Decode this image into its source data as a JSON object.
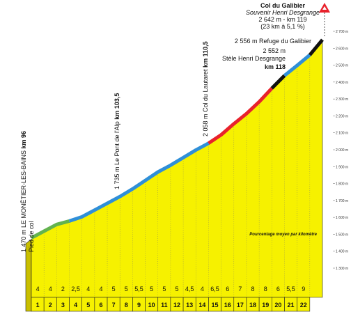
{
  "chart_data": {
    "type": "profile",
    "x": [
      0,
      1,
      2,
      3,
      4,
      5,
      6,
      7,
      8,
      9,
      10,
      11,
      12,
      13,
      14,
      15,
      16,
      17,
      18,
      19,
      20,
      21,
      22,
      23
    ],
    "values": [
      1470,
      1510,
      1550,
      1570,
      1595,
      1635,
      1675,
      1715,
      1760,
      1810,
      1860,
      1900,
      1945,
      1990,
      2030,
      2080,
      2145,
      2205,
      2275,
      2355,
      2430,
      2490,
      2552,
      2642
    ],
    "fill": "#f6f100",
    "segments": [
      {
        "from": 0,
        "to": 3,
        "color": "#63b34f"
      },
      {
        "from": 3,
        "to": 14,
        "color": "#2f8fd8"
      },
      {
        "from": 14,
        "to": 19,
        "color": "#e8222c"
      },
      {
        "from": 19,
        "to": 20,
        "color": "#111111"
      },
      {
        "from": 20,
        "to": 22,
        "color": "#2f8fd8"
      },
      {
        "from": 22,
        "to": 23,
        "color": "#111111"
      }
    ],
    "gradients": {
      "values": [
        4,
        4,
        2,
        2.5,
        4,
        4,
        5,
        5,
        5.5,
        5,
        5,
        5,
        4.5,
        4,
        6.5,
        6,
        7,
        8,
        8,
        6,
        5.5,
        9
      ],
      "value_labels": [
        "4",
        "4",
        "2",
        "2,5",
        "4",
        "4",
        "5",
        "5",
        "5,5",
        "5",
        "5",
        "5",
        "4,5",
        "4",
        "6,5",
        "6",
        "7",
        "8",
        "8",
        "6",
        "5,5",
        "9"
      ]
    },
    "km_labels": [
      1,
      2,
      3,
      4,
      5,
      6,
      7,
      8,
      9,
      10,
      11,
      12,
      13,
      14,
      15,
      16,
      17,
      18,
      19,
      20,
      21,
      22
    ],
    "xlim": [
      0,
      23
    ],
    "ylim": [
      1300,
      2700
    ],
    "yticks": [
      {
        "value": 1300,
        "label": "1 300 m"
      },
      {
        "value": 1400,
        "label": "1 400 m"
      },
      {
        "value": 1500,
        "label": "1 500 m"
      },
      {
        "value": 1600,
        "label": "1 600 m"
      },
      {
        "value": 1700,
        "label": "1 700 m"
      },
      {
        "value": 1800,
        "label": "1 800 m"
      },
      {
        "value": 1900,
        "label": "1 900 m"
      },
      {
        "value": 2000,
        "label": "2 000 m"
      },
      {
        "value": 2100,
        "label": "2 100 m"
      },
      {
        "value": 2200,
        "label": "2 200 m"
      },
      {
        "value": 2300,
        "label": "2 300 m"
      },
      {
        "value": 2400,
        "label": "2 400 m"
      },
      {
        "value": 2500,
        "label": "2 500 m"
      },
      {
        "value": 2600,
        "label": "2 600 m"
      },
      {
        "value": 2700,
        "label": "2 700 m"
      }
    ],
    "gradient_caption": "Pourcentage moyen par kilomètre"
  },
  "annotations": {
    "start": {
      "text": "1 470 m LE MONÊTIER-LES-BAINS ",
      "km": "km 96",
      "sub": "Pied de col"
    },
    "pont": {
      "text": "1 735 m Le Pont de l'Alp ",
      "km": "km 103,5"
    },
    "lautaret": {
      "text": "2 058 m Col du Lautaret ",
      "km": "km 110,5"
    },
    "refuge": "2 556 m Refuge du Galibier",
    "stele": {
      "alt": "2 552 m",
      "text": "Stèle Henri Desgrange",
      "km": "km 118"
    },
    "summit": {
      "name": "Col du Galibier",
      "sub": "Souvenir Henri Desgrange",
      "alt": "2 642 m - km 119",
      "avg": "(23 km à 5,1 %)"
    }
  }
}
